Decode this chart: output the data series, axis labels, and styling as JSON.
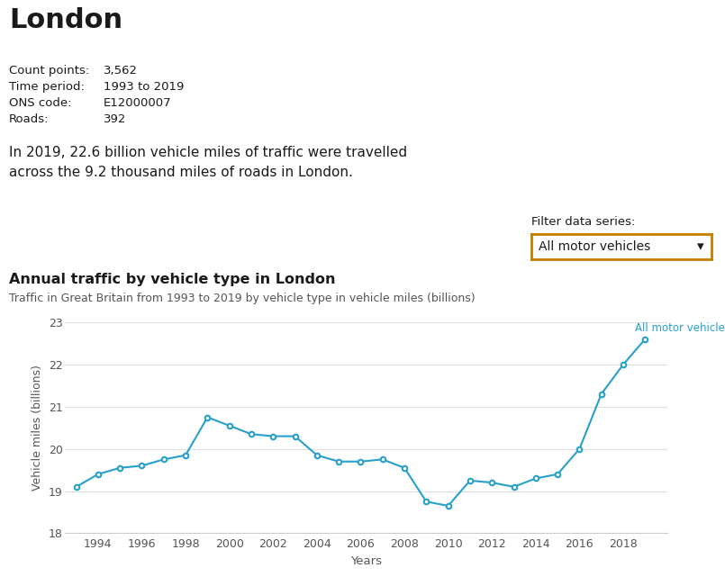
{
  "title": "London",
  "meta_labels": [
    "Count points:",
    "Time period:",
    "ONS code:",
    "Roads:"
  ],
  "meta_values": [
    "3,562",
    "1993 to 2019",
    "E12000007",
    "392"
  ],
  "description": "In 2019, 22.6 billion vehicle miles of traffic were travelled\nacross the 9.2 thousand miles of roads in London.",
  "filter_label": "Filter data series:",
  "filter_value": "All motor vehicles",
  "chart_title": "Annual traffic by vehicle type in London",
  "chart_subtitle": "Traffic in Great Britain from 1993 to 2019 by vehicle type in vehicle miles (billions)",
  "series_label": "All motor vehicles",
  "years": [
    1993,
    1994,
    1995,
    1996,
    1997,
    1998,
    1999,
    2000,
    2001,
    2002,
    2003,
    2004,
    2005,
    2006,
    2007,
    2008,
    2009,
    2010,
    2011,
    2012,
    2013,
    2014,
    2015,
    2016,
    2017,
    2018,
    2019
  ],
  "values": [
    19.1,
    19.4,
    19.55,
    19.6,
    19.75,
    19.85,
    20.75,
    20.55,
    20.35,
    20.3,
    20.3,
    19.85,
    19.7,
    19.7,
    19.75,
    19.55,
    18.75,
    18.65,
    19.25,
    19.2,
    19.1,
    19.3,
    19.4,
    20.0,
    21.3,
    22.0,
    22.6
  ],
  "line_color": "#27a0cc",
  "bg_color": "#ffffff",
  "grid_color": "#e0e0e0",
  "ylim": [
    18,
    23
  ],
  "yticks": [
    18,
    19,
    20,
    21,
    22,
    23
  ],
  "xticks": [
    1994,
    1996,
    1998,
    2000,
    2002,
    2004,
    2006,
    2008,
    2010,
    2012,
    2014,
    2016,
    2018
  ],
  "xlabel": "Years",
  "ylabel": "Vehicle miles (billions)",
  "dropdown_edge_color": "#c87d00",
  "text_color": "#1a1a1a",
  "axis_text_color": "#555555"
}
